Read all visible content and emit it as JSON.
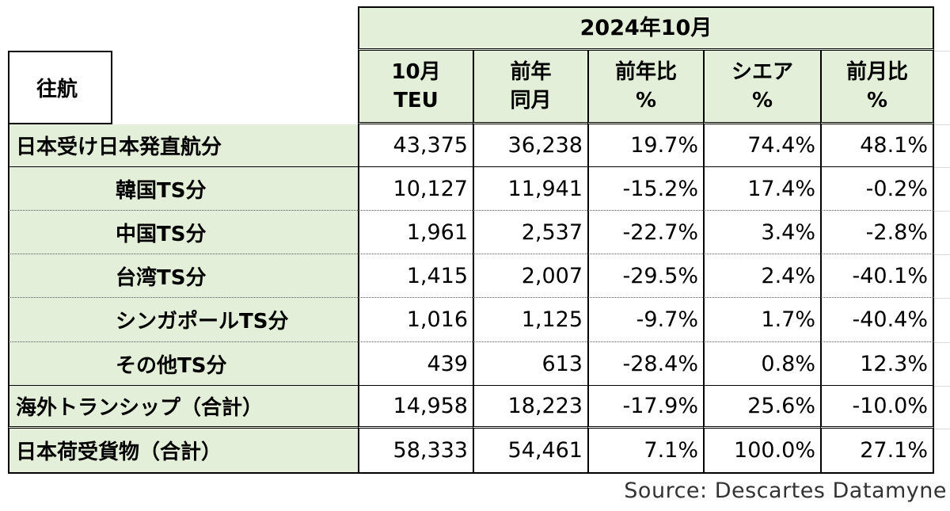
{
  "title": "2024年10月",
  "corner_label": "往航",
  "headers": [
    [
      "10月",
      "TEU"
    ],
    [
      "前年",
      "同月"
    ],
    [
      "前年比",
      "%"
    ],
    [
      "シエア",
      "%"
    ],
    [
      "前月比",
      "%"
    ]
  ],
  "rows": [
    {
      "label": "日本受け日本発直航分",
      "values": [
        "43,375",
        "36,238",
        "19.7%",
        "74.4%",
        "48.1%"
      ]
    },
    {
      "label": "韓国TS分",
      "values": [
        "10,127",
        "11,941",
        "-15.2%",
        "17.4%",
        "-0.2%"
      ]
    },
    {
      "label": "中国TS分",
      "values": [
        "1,961",
        "2,537",
        "-22.7%",
        "3.4%",
        "-2.8%"
      ]
    },
    {
      "label": "台湾TS分",
      "values": [
        "1,415",
        "2,007",
        "-29.5%",
        "2.4%",
        "-40.1%"
      ]
    },
    {
      "label": "シンガポールTS分",
      "values": [
        "1,016",
        "1,125",
        "-9.7%",
        "1.7%",
        "-40.4%"
      ]
    },
    {
      "label": "その他TS分",
      "values": [
        "439",
        "613",
        "-28.4%",
        "0.8%",
        "12.3%"
      ]
    },
    {
      "label": "海外トランシップ（合計）",
      "values": [
        "14,958",
        "18,223",
        "-17.9%",
        "25.6%",
        "-10.0%"
      ]
    },
    {
      "label": "日本荷受貨物（合計）",
      "values": [
        "58,333",
        "54,461",
        "7.1%",
        "100.0%",
        "27.1%"
      ]
    }
  ],
  "source": "Source:  Descartes Datamyne",
  "colors": {
    "header_fill": "#e3efd9",
    "border": "#000000",
    "dotted": "#555555"
  }
}
